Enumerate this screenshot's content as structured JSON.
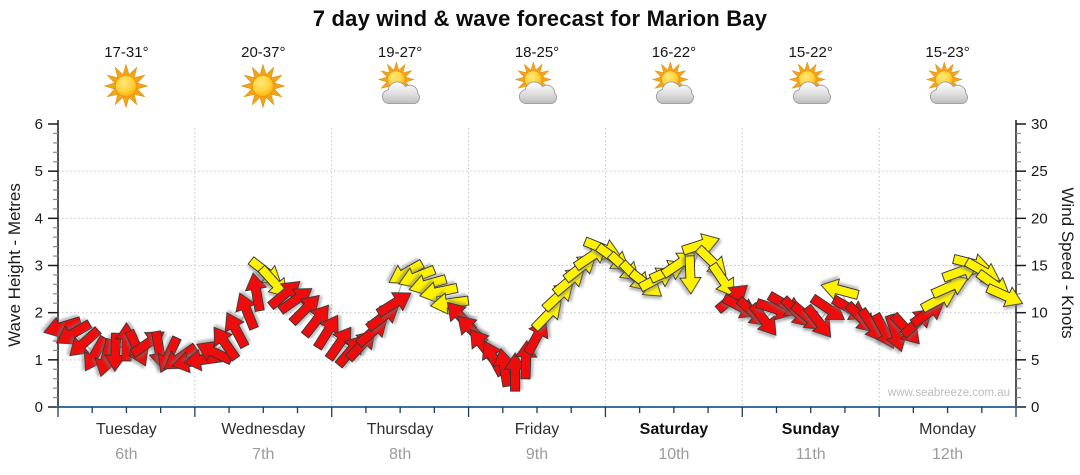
{
  "title": "7 day wind & wave forecast for Marion Bay",
  "watermark": "www.seabreeze.com.au",
  "colors": {
    "arrow_red": "#ee1111",
    "arrow_yellow": "#fff200",
    "arrow_outline": "#333333",
    "bottom_axis": "#3c6e9f",
    "axis_line": "#1c1c1c",
    "minor_tick": "#8a8a8a",
    "grid_dotted": "#c4c4c4",
    "wind_trace": "#b5b5b5",
    "date_text": "#9b9b9b"
  },
  "days": [
    {
      "name": "Tuesday",
      "date": "6th",
      "temp": "17-31°",
      "icon": "sunny",
      "bold": false
    },
    {
      "name": "Wednesday",
      "date": "7th",
      "temp": "20-37°",
      "icon": "sunny",
      "bold": false
    },
    {
      "name": "Thursday",
      "date": "8th",
      "temp": "19-27°",
      "icon": "partly-cloudy",
      "bold": false
    },
    {
      "name": "Friday",
      "date": "9th",
      "temp": "18-25°",
      "icon": "partly-cloudy",
      "bold": false
    },
    {
      "name": "Saturday",
      "date": "10th",
      "temp": "16-22°",
      "icon": "partly-cloudy",
      "bold": true
    },
    {
      "name": "Sunday",
      "date": "11th",
      "temp": "15-22°",
      "icon": "partly-cloudy",
      "bold": true
    },
    {
      "name": "Monday",
      "date": "12th",
      "temp": "15-23°",
      "icon": "partly-cloudy",
      "bold": false
    }
  ],
  "chart_data": {
    "type": "scatter",
    "subtype": "wind-direction-arrows-over-time",
    "left_axis": {
      "label": "Wave Height - Metres",
      "min": 0,
      "max": 6,
      "major_step": 1,
      "minor_per_major": 5
    },
    "right_axis": {
      "label": "Wind Speed - Knots",
      "min": 0,
      "max": 30,
      "major_step": 5,
      "minor_per_major": 5
    },
    "x_axis": {
      "unit": "days",
      "count": 7,
      "minor_ticks_per_day": 4,
      "gridlines_at_day_boundaries": true
    },
    "arrows_format": [
      "t_days_from_start",
      "wind_speed_knots",
      "arrow_direction_deg_cw_from_east",
      "color r=red y=yellow"
    ],
    "arrows": [
      [
        0.03,
        8.5,
        163,
        "r"
      ],
      [
        0.11,
        7.8,
        150,
        "r"
      ],
      [
        0.19,
        6.8,
        138,
        "r"
      ],
      [
        0.27,
        5.6,
        120,
        "r"
      ],
      [
        0.35,
        5.2,
        105,
        "r"
      ],
      [
        0.42,
        5.8,
        92,
        "r"
      ],
      [
        0.5,
        6.9,
        -90,
        "r"
      ],
      [
        0.58,
        6.2,
        65,
        "r"
      ],
      [
        0.66,
        6.8,
        -35,
        "r"
      ],
      [
        0.74,
        6.0,
        80,
        "r"
      ],
      [
        0.81,
        5.5,
        115,
        "r"
      ],
      [
        0.89,
        5.2,
        145,
        "r"
      ],
      [
        0.97,
        4.8,
        168,
        "r"
      ],
      [
        1.06,
        5.0,
        172,
        "r"
      ],
      [
        1.14,
        5.8,
        -155,
        "r"
      ],
      [
        1.22,
        6.8,
        -125,
        "r"
      ],
      [
        1.3,
        8.2,
        -118,
        "r"
      ],
      [
        1.38,
        10.2,
        -112,
        "r"
      ],
      [
        1.45,
        12.2,
        -100,
        "r"
      ],
      [
        1.52,
        14.3,
        38,
        "y"
      ],
      [
        1.58,
        13.2,
        48,
        "y"
      ],
      [
        1.66,
        12.0,
        -40,
        "r"
      ],
      [
        1.74,
        11.4,
        -35,
        "r"
      ],
      [
        1.81,
        10.4,
        -45,
        "r"
      ],
      [
        1.89,
        9.2,
        -52,
        "r"
      ],
      [
        1.97,
        8.0,
        -58,
        "r"
      ],
      [
        2.06,
        6.8,
        -55,
        "r"
      ],
      [
        2.14,
        6.0,
        -50,
        "r"
      ],
      [
        2.22,
        6.6,
        -47,
        "r"
      ],
      [
        2.3,
        8.0,
        -42,
        "r"
      ],
      [
        2.38,
        9.6,
        -37,
        "r"
      ],
      [
        2.46,
        11.0,
        -32,
        "r"
      ],
      [
        2.54,
        14.2,
        150,
        "y"
      ],
      [
        2.62,
        13.8,
        158,
        "y"
      ],
      [
        2.7,
        13.0,
        164,
        "y"
      ],
      [
        2.78,
        12.2,
        168,
        "y"
      ],
      [
        2.86,
        11.0,
        172,
        "y"
      ],
      [
        2.94,
        9.6,
        -133,
        "r"
      ],
      [
        3.02,
        8.2,
        -135,
        "r"
      ],
      [
        3.1,
        6.6,
        -128,
        "r"
      ],
      [
        3.18,
        5.2,
        -118,
        "r"
      ],
      [
        3.26,
        4.2,
        -100,
        "r"
      ],
      [
        3.34,
        3.7,
        -90,
        "r"
      ],
      [
        3.42,
        5.0,
        -88,
        "r"
      ],
      [
        3.5,
        7.5,
        -62,
        "r"
      ],
      [
        3.58,
        9.8,
        -46,
        "y"
      ],
      [
        3.66,
        11.8,
        -43,
        "y"
      ],
      [
        3.74,
        13.4,
        -40,
        "y"
      ],
      [
        3.82,
        14.8,
        -38,
        "y"
      ],
      [
        3.9,
        16.0,
        -34,
        "y"
      ],
      [
        3.98,
        16.8,
        22,
        "y"
      ],
      [
        4.06,
        15.8,
        36,
        "y"
      ],
      [
        4.14,
        14.8,
        42,
        "y"
      ],
      [
        4.22,
        13.8,
        46,
        "y"
      ],
      [
        4.3,
        13.0,
        38,
        "y"
      ],
      [
        4.38,
        13.6,
        -28,
        "y"
      ],
      [
        4.46,
        14.4,
        -24,
        "y"
      ],
      [
        4.54,
        15.2,
        -34,
        "y"
      ],
      [
        4.62,
        14.0,
        88,
        "y"
      ],
      [
        4.7,
        17.2,
        -18,
        "y"
      ],
      [
        4.78,
        15.4,
        44,
        "y"
      ],
      [
        4.86,
        13.4,
        56,
        "y"
      ],
      [
        4.93,
        11.6,
        -40,
        "r"
      ],
      [
        4.99,
        10.6,
        28,
        "r"
      ],
      [
        5.08,
        10.0,
        42,
        "r"
      ],
      [
        5.16,
        9.2,
        52,
        "r"
      ],
      [
        5.24,
        10.4,
        18,
        "r"
      ],
      [
        5.32,
        10.8,
        30,
        "r"
      ],
      [
        5.4,
        10.0,
        46,
        "r"
      ],
      [
        5.48,
        9.5,
        40,
        "r"
      ],
      [
        5.56,
        9.0,
        52,
        "r"
      ],
      [
        5.63,
        10.4,
        34,
        "r"
      ],
      [
        5.71,
        12.4,
        -165,
        "y"
      ],
      [
        5.79,
        10.4,
        30,
        "r"
      ],
      [
        5.87,
        9.4,
        46,
        "r"
      ],
      [
        5.95,
        8.6,
        56,
        "r"
      ],
      [
        6.04,
        8.0,
        62,
        "r"
      ],
      [
        6.12,
        7.8,
        72,
        "r"
      ],
      [
        6.2,
        8.2,
        48,
        "r"
      ],
      [
        6.28,
        9.0,
        -42,
        "r"
      ],
      [
        6.36,
        10.0,
        -35,
        "r"
      ],
      [
        6.44,
        11.4,
        -28,
        "y"
      ],
      [
        6.52,
        12.8,
        -24,
        "y"
      ],
      [
        6.6,
        14.4,
        -20,
        "y"
      ],
      [
        6.68,
        15.2,
        14,
        "y"
      ],
      [
        6.76,
        14.4,
        30,
        "y"
      ],
      [
        6.84,
        13.0,
        36,
        "y"
      ],
      [
        6.92,
        11.8,
        24,
        "y"
      ]
    ]
  }
}
